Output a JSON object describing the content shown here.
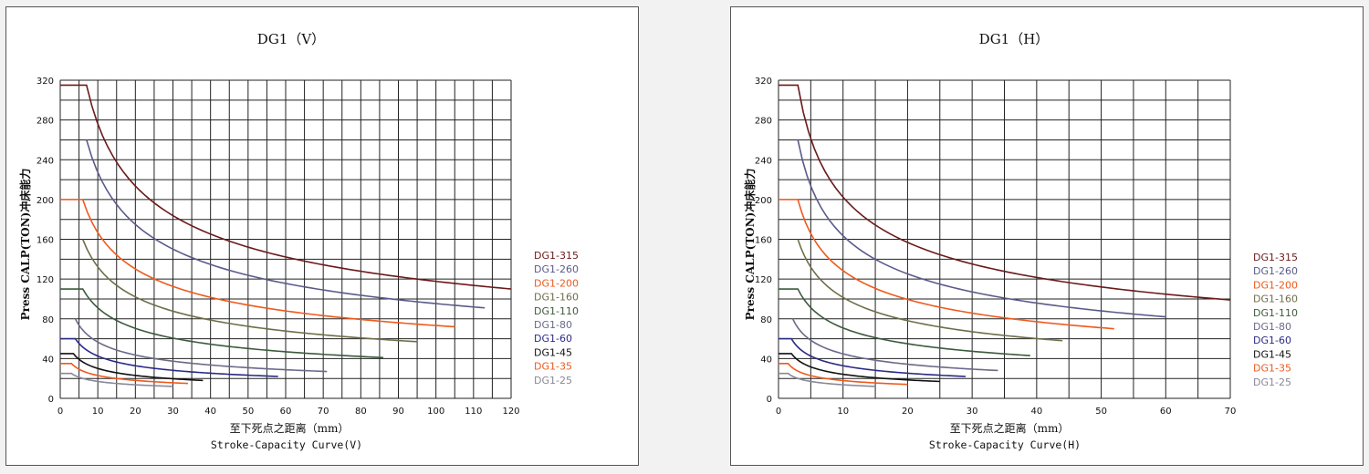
{
  "chart_data": [
    {
      "type": "line",
      "title": "DG1（V）",
      "xlabel": "至下死点之距离（mm）",
      "xlabel2": "Stroke-Capacity Curve(V)",
      "ylabel": "Press CALP(TON)冲床能力",
      "xlim": [
        0,
        120
      ],
      "ylim": [
        0,
        320
      ],
      "xticks": [
        0,
        10,
        20,
        30,
        40,
        50,
        60,
        70,
        80,
        90,
        100,
        110,
        120
      ],
      "yticks": [
        0,
        40,
        80,
        120,
        160,
        200,
        240,
        280,
        320
      ],
      "grid": true,
      "legend_position": "right",
      "series": [
        {
          "name": "DG1-315",
          "color": "#6b1a1a",
          "cap": 315,
          "x_start": 0,
          "x_knee": 7,
          "x_end": 120,
          "y_end": 110
        },
        {
          "name": "DG1-260",
          "color": "#5a5a8a",
          "cap": 260,
          "x_start": 7,
          "x_knee": 7,
          "x_end": 113,
          "y_end": 91
        },
        {
          "name": "DG1-200",
          "color": "#ee5a1c",
          "cap": 200,
          "x_start": 0,
          "x_knee": 6,
          "x_end": 105,
          "y_end": 72
        },
        {
          "name": "DG1-160",
          "color": "#6e6e48",
          "cap": 160,
          "x_start": 6,
          "x_knee": 6,
          "x_end": 95,
          "y_end": 57
        },
        {
          "name": "DG1-110",
          "color": "#3c5a3c",
          "cap": 110,
          "x_start": 0,
          "x_knee": 6,
          "x_end": 86,
          "y_end": 41
        },
        {
          "name": "DG1-80",
          "color": "#6a6a8a",
          "cap": 80,
          "x_start": 4,
          "x_knee": 4,
          "x_end": 71,
          "y_end": 27
        },
        {
          "name": "DG1-60",
          "color": "#2a2a88",
          "cap": 60,
          "x_start": 0,
          "x_knee": 4,
          "x_end": 58,
          "y_end": 22
        },
        {
          "name": "DG1-45",
          "color": "#111111",
          "cap": 45,
          "x_start": 0,
          "x_knee": 3.5,
          "x_end": 38,
          "y_end": 18
        },
        {
          "name": "DG1-35",
          "color": "#ee5a1c",
          "cap": 35,
          "x_start": 0,
          "x_knee": 3,
          "x_end": 34,
          "y_end": 15
        },
        {
          "name": "DG1-25",
          "color": "#888899",
          "cap": 25,
          "x_start": 0,
          "x_knee": 3,
          "x_end": 30,
          "y_end": 12
        }
      ]
    },
    {
      "type": "line",
      "title": "DG1（H）",
      "xlabel": "至下死点之距离（mm）",
      "xlabel2": "Stroke-Capacity Curve(H)",
      "ylabel": "Press CALP(TON)冲床能力",
      "xlim": [
        0,
        70
      ],
      "ylim": [
        0,
        320
      ],
      "xticks": [
        0,
        10,
        20,
        30,
        40,
        50,
        60,
        70
      ],
      "yticks": [
        0,
        40,
        80,
        120,
        160,
        200,
        240,
        280,
        320
      ],
      "grid": true,
      "legend_position": "right",
      "series": [
        {
          "name": "DG1-315",
          "color": "#6b1a1a",
          "cap": 315,
          "x_start": 0,
          "x_knee": 3,
          "x_end": 70,
          "y_end": 99
        },
        {
          "name": "DG1-260",
          "color": "#5a5a8a",
          "cap": 260,
          "x_start": 3,
          "x_knee": 3,
          "x_end": 60,
          "y_end": 82
        },
        {
          "name": "DG1-200",
          "color": "#ee5a1c",
          "cap": 200,
          "x_start": 0,
          "x_knee": 3,
          "x_end": 52,
          "y_end": 70
        },
        {
          "name": "DG1-160",
          "color": "#6e6e48",
          "cap": 160,
          "x_start": 3,
          "x_knee": 3,
          "x_end": 44,
          "y_end": 58
        },
        {
          "name": "DG1-110",
          "color": "#3c5a3c",
          "cap": 110,
          "x_start": 0,
          "x_knee": 3,
          "x_end": 39,
          "y_end": 43
        },
        {
          "name": "DG1-80",
          "color": "#6a6a8a",
          "cap": 80,
          "x_start": 2.2,
          "x_knee": 2.2,
          "x_end": 34,
          "y_end": 28
        },
        {
          "name": "DG1-60",
          "color": "#2a2a88",
          "cap": 60,
          "x_start": 0,
          "x_knee": 2,
          "x_end": 29,
          "y_end": 22
        },
        {
          "name": "DG1-45",
          "color": "#111111",
          "cap": 45,
          "x_start": 0,
          "x_knee": 2,
          "x_end": 25,
          "y_end": 17
        },
        {
          "name": "DG1-35",
          "color": "#ee5a1c",
          "cap": 35,
          "x_start": 0,
          "x_knee": 1.5,
          "x_end": 20,
          "y_end": 14
        },
        {
          "name": "DG1-25",
          "color": "#888899",
          "cap": 25,
          "x_start": 0,
          "x_knee": 1.5,
          "x_end": 15,
          "y_end": 12
        }
      ]
    }
  ]
}
